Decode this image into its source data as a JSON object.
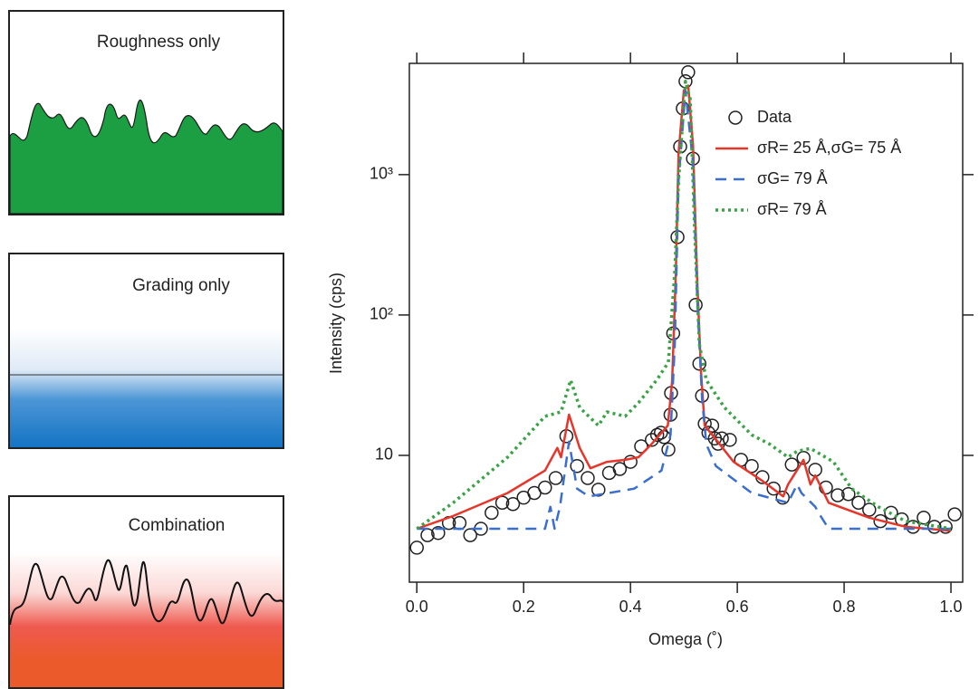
{
  "panels": [
    {
      "title": "Roughness only"
    },
    {
      "title": "Grading only"
    },
    {
      "title": "Combination"
    }
  ],
  "chart_data": {
    "type": "line",
    "xlabel": "Omega (˚)",
    "ylabel": "Intensity (cps)",
    "xlim": [
      -0.014,
      1.022
    ],
    "xticks": [
      {
        "value": 0,
        "label": "0.0"
      },
      0.2,
      0.4,
      0.6,
      0.8,
      {
        "value": 1,
        "label": "1.0"
      }
    ],
    "ylim": [
      1.25,
      6200
    ],
    "yscale": "log",
    "yticks": [
      10,
      {
        "value": 100,
        "label": "10²"
      },
      {
        "value": 1000,
        "label": "10³"
      }
    ],
    "legend": "top right",
    "series": [
      {
        "name": "Data",
        "color": "#222222",
        "style": "markers",
        "x": [
          0.0,
          0.02,
          0.04,
          0.06,
          0.08,
          0.1,
          0.12,
          0.14,
          0.16,
          0.18,
          0.2,
          0.22,
          0.24,
          0.26,
          0.28,
          0.3,
          0.32,
          0.34,
          0.36,
          0.38,
          0.4,
          0.42,
          0.44,
          0.45,
          0.457,
          0.463,
          0.471,
          0.475,
          0.476,
          0.48,
          0.488,
          0.493,
          0.498,
          0.503,
          0.508,
          0.517,
          0.522,
          0.529,
          0.534,
          0.539,
          0.546,
          0.553,
          0.558,
          0.564,
          0.571,
          0.586,
          0.607,
          0.627,
          0.647,
          0.668,
          0.685,
          0.702,
          0.724,
          0.746,
          0.766,
          0.788,
          0.808,
          0.827,
          0.847,
          0.868,
          0.888,
          0.908,
          0.929,
          0.949,
          0.969,
          0.99,
          1.007
        ],
        "values": [
          2.2,
          2.7,
          2.8,
          3.3,
          3.3,
          2.7,
          3.0,
          3.9,
          4.6,
          4.5,
          5.0,
          5.4,
          5.9,
          6.9,
          13.7,
          8.4,
          6.9,
          5.7,
          7.5,
          8.0,
          9.0,
          11.6,
          12.9,
          14,
          14.5,
          13.5,
          11.0,
          19.5,
          27.8,
          74,
          359,
          1585,
          2960,
          4620,
          5360,
          1300,
          118,
          45,
          26.6,
          16.8,
          14.5,
          16.3,
          13.2,
          12.1,
          13.2,
          12.9,
          9.3,
          8.4,
          7.0,
          5.8,
          5.0,
          8.6,
          9.6,
          7.9,
          5.9,
          5.2,
          5.3,
          4.6,
          4.1,
          3.4,
          3.9,
          3.5,
          3.1,
          3.6,
          3.1,
          3.1,
          3.8
        ]
      },
      {
        "name": "σR= 25 Å,σG= 75 Å",
        "color": "#e8352a",
        "style": "solid",
        "x": [
          0,
          0.068,
          0.17,
          0.24,
          0.263,
          0.27,
          0.285,
          0.305,
          0.325,
          0.356,
          0.39,
          0.415,
          0.44,
          0.47,
          0.478,
          0.485,
          0.49,
          0.5,
          0.508,
          0.517,
          0.525,
          0.532,
          0.539,
          0.56,
          0.593,
          0.644,
          0.686,
          0.695,
          0.724,
          0.737,
          0.746,
          0.771,
          0.847,
          0.915,
          1.0
        ],
        "values": [
          3.0,
          3.7,
          5.4,
          7.8,
          11.3,
          9.7,
          19.5,
          11.3,
          8.1,
          9.0,
          9.3,
          9.7,
          12.1,
          16.3,
          34,
          204,
          1400,
          3980,
          4300,
          1630,
          174,
          39.8,
          16.3,
          13,
          9.0,
          6.7,
          5.1,
          6.2,
          9.3,
          6.2,
          7.2,
          4.6,
          3.6,
          3.1,
          2.9
        ]
      },
      {
        "name": "σG= 79 Å",
        "color": "#3a6fd0",
        "style": "dashed",
        "x": [
          0,
          0.24,
          0.25,
          0.258,
          0.268,
          0.285,
          0.3,
          0.322,
          0.407,
          0.458,
          0.475,
          0.483,
          0.49,
          0.503,
          0.517,
          0.525,
          0.534,
          0.542,
          0.56,
          0.627,
          0.695,
          0.712,
          0.72,
          0.746,
          0.754,
          0.771,
          1.0
        ],
        "values": [
          3.0,
          3.0,
          4.3,
          3.0,
          4.3,
          12.5,
          5.8,
          5.1,
          5.8,
          7.8,
          14,
          62,
          900,
          3980,
          1210,
          130,
          25.5,
          12,
          8.4,
          5.4,
          4.6,
          6.2,
          5.4,
          4.3,
          3.8,
          3.0,
          3.0
        ]
      },
      {
        "name": "σR= 79 Å",
        "color": "#3aa346",
        "style": "dotted",
        "x": [
          0,
          0.068,
          0.17,
          0.24,
          0.27,
          0.288,
          0.305,
          0.34,
          0.356,
          0.39,
          0.415,
          0.449,
          0.471,
          0.483,
          0.49,
          0.503,
          0.512,
          0.52,
          0.529,
          0.542,
          0.576,
          0.627,
          0.661,
          0.695,
          0.712,
          0.737,
          0.78,
          0.814,
          0.864,
          0.915,
          1.0
        ],
        "values": [
          3.0,
          4.6,
          9.7,
          19,
          20.4,
          34.4,
          21.9,
          16.3,
          20.4,
          19,
          23.7,
          34.4,
          46,
          204,
          900,
          4620,
          3430,
          428,
          62,
          34.4,
          21.9,
          14,
          12,
          9.7,
          10.7,
          11.2,
          9.0,
          5.8,
          4.3,
          3.4,
          3.0
        ]
      }
    ]
  }
}
